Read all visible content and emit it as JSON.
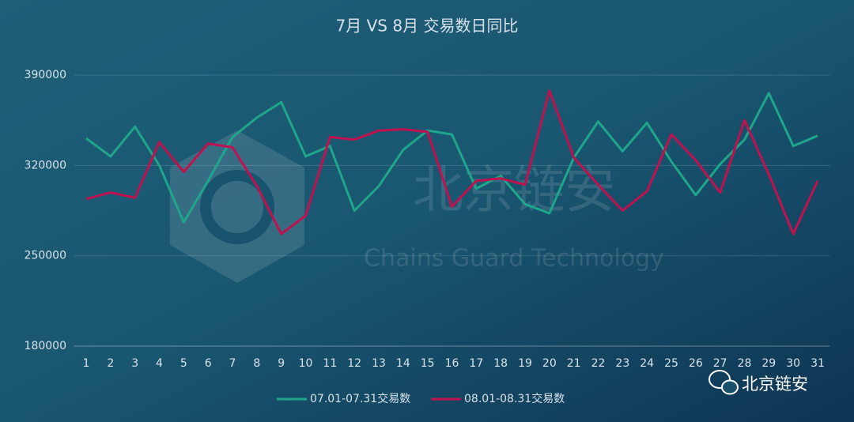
{
  "chart_data": {
    "type": "line",
    "title": "7月 VS 8月 交易数日同比",
    "categories": [
      "1",
      "2",
      "3",
      "4",
      "5",
      "6",
      "7",
      "8",
      "9",
      "10",
      "11",
      "12",
      "13",
      "14",
      "15",
      "16",
      "17",
      "18",
      "19",
      "20",
      "21",
      "22",
      "23",
      "24",
      "25",
      "26",
      "27",
      "28",
      "29",
      "30",
      "31"
    ],
    "series": [
      {
        "name": "07.01-07.31交易数",
        "color": "#1fa58a",
        "values": [
          341000,
          327000,
          350000,
          320000,
          276000,
          308000,
          342000,
          357000,
          369000,
          327000,
          335000,
          285000,
          304000,
          332000,
          347000,
          344000,
          302000,
          312000,
          290000,
          283000,
          326000,
          354000,
          331000,
          353000,
          323000,
          297000,
          321000,
          340000,
          376000,
          335000,
          343000
        ]
      },
      {
        "name": "08.01-08.31交易数",
        "color": "#c0124f",
        "values": [
          294000,
          299000,
          295000,
          338000,
          315000,
          337000,
          334000,
          304000,
          267000,
          281000,
          342000,
          340000,
          347000,
          348000,
          346000,
          288000,
          308000,
          310000,
          305000,
          378000,
          326000,
          305000,
          285000,
          300000,
          344000,
          324000,
          299000,
          355000,
          313000,
          267000,
          308000
        ]
      }
    ],
    "ylim": [
      180000,
      390000
    ],
    "yticks": [
      180000,
      250000,
      320000,
      390000
    ],
    "grid": true,
    "legend": "bottom",
    "watermark": "北京链安",
    "watermark_subtitle": "Chains Guard Technology",
    "brand": "北京链安"
  }
}
